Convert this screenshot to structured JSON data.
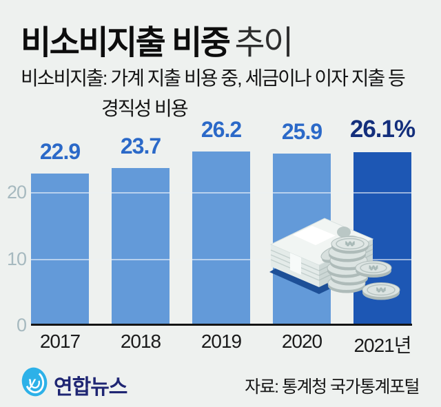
{
  "title": {
    "main": "비소비지출 비중",
    "suffix": "추이"
  },
  "subtitle": {
    "line1": "비소비지출: 가계 지출 비용 중, 세금이나 이자 지출 등",
    "line2": "경직성 비용"
  },
  "chart_data": {
    "type": "bar",
    "title": "비소비지출 비중 추이",
    "categories": [
      "2017",
      "2018",
      "2019",
      "2020",
      "2021년"
    ],
    "values": [
      22.9,
      23.7,
      26.2,
      25.9,
      26.1
    ],
    "value_labels": [
      "22.9",
      "23.7",
      "26.2",
      "25.9",
      "26.1%"
    ],
    "unit": "%",
    "yticks": [
      "0",
      "10",
      "20"
    ],
    "ytick_values": [
      0,
      10,
      20
    ],
    "ylim": [
      0,
      28
    ],
    "grid": "horizontal",
    "legend": "none",
    "highlight_index": 4,
    "colors": {
      "bar": "#639ad9",
      "bar_highlight": "#1d57b4",
      "value_label": "#2b69c8",
      "value_label_highlight": "#142f7c",
      "axis_tick": "#a6b9bf",
      "baseline": "#141414",
      "gridline_front": "rgba(255,255,255,0.55)"
    }
  },
  "footer": {
    "brand": "연합뉴스",
    "source": "자료: 통계청 국가통계포털"
  },
  "colors": {
    "background": "#eef1ef",
    "logo_blue": "#2db1e8",
    "brand_navy": "#1f2673"
  },
  "icons": {
    "logo": "yonhap-swirl-icon",
    "illustration": "money-banknotes-and-coins",
    "coin_symbol": "₩"
  }
}
